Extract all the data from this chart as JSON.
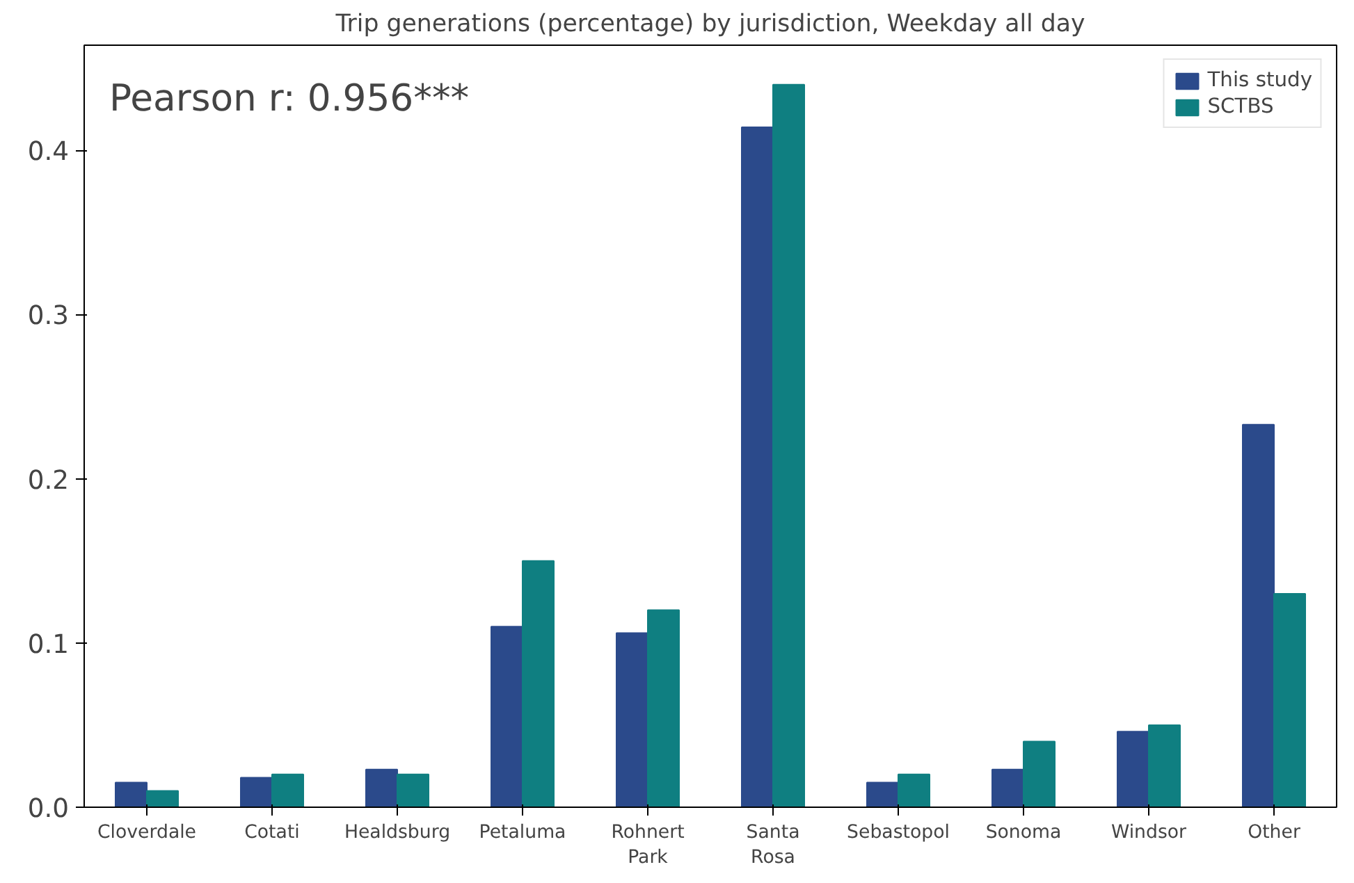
{
  "chart_data": {
    "type": "bar",
    "title": "Trip generations (percentage) by jurisdiction, Weekday all day",
    "categories": [
      "Cloverdale",
      "Cotati",
      "Healdsburg",
      "Petaluma",
      "Rohnert\nPark",
      "Santa\nRosa",
      "Sebastopol",
      "Sonoma",
      "Windsor",
      "Other"
    ],
    "series": [
      {
        "name": "This study",
        "color": "#2b4a8b",
        "values": [
          0.015,
          0.018,
          0.023,
          0.11,
          0.106,
          0.414,
          0.015,
          0.023,
          0.046,
          0.233
        ]
      },
      {
        "name": "SCTBS",
        "color": "#0f7f81",
        "values": [
          0.01,
          0.02,
          0.02,
          0.15,
          0.12,
          0.44,
          0.02,
          0.04,
          0.05,
          0.13
        ]
      }
    ],
    "ylim": [
      0,
      0.464
    ],
    "yticks": [
      {
        "value": 0,
        "label": "0.0"
      },
      {
        "value": 0.1,
        "label": "0.1"
      },
      {
        "value": 0.2,
        "label": "0.2"
      },
      {
        "value": 0.3,
        "label": "0.3"
      },
      {
        "value": 0.4,
        "label": "0.4"
      }
    ],
    "annotations": [
      "Pearson r: 0.956***"
    ],
    "legend": "top right",
    "grid": false
  }
}
